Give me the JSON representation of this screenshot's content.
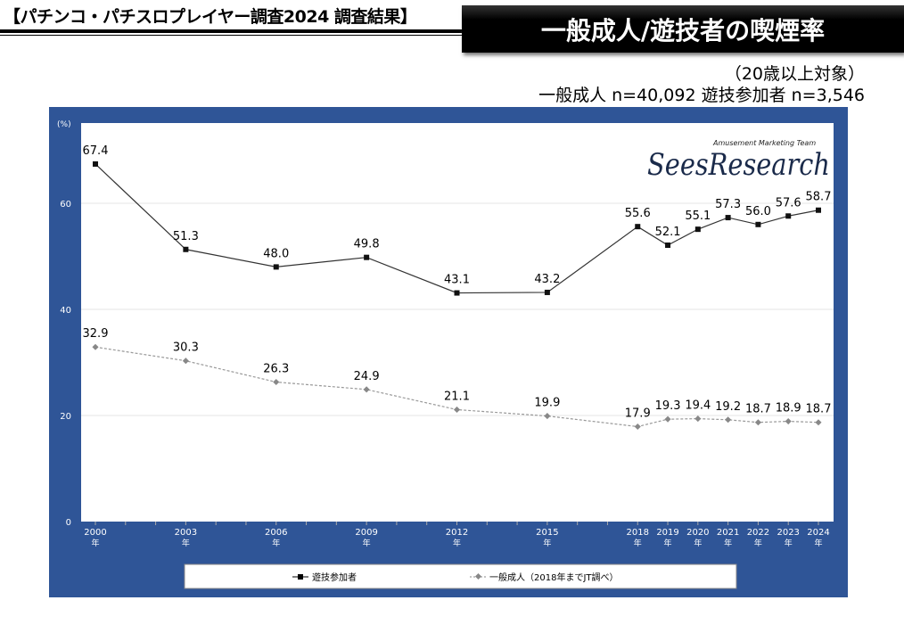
{
  "header": {
    "survey_title": "【パチンコ・パチスロプレイヤー調査2024 調査結果】",
    "chart_title": "一般成人/遊技者の喫煙率",
    "target_note": "（20歳以上対象）",
    "sample_sizes": "一般成人 n=40,092  遊技参加者 n=3,546"
  },
  "logo": {
    "tagline": "Amusement Marketing Team",
    "name": "SeesResearch"
  },
  "colors": {
    "panel": "#2f5597",
    "player_line": "#000000",
    "adult_line": "#808080"
  },
  "chart_data": {
    "type": "line",
    "title": "一般成人/遊技者の喫煙率",
    "ylabel": "(%)",
    "ylim": [
      0,
      70
    ],
    "yticks": [
      0,
      20,
      40,
      60
    ],
    "grid": true,
    "legend_position": "bottom",
    "x": [
      2000,
      2003,
      2006,
      2009,
      2012,
      2015,
      2018,
      2019,
      2020,
      2021,
      2022,
      2023,
      2024
    ],
    "x_tick_labels": [
      "2000",
      "2003",
      "2006",
      "2009",
      "2012",
      "2015",
      "2018",
      "2019",
      "2020",
      "2021",
      "2022",
      "2023",
      "2024"
    ],
    "x_tick_suffix": "年",
    "series": [
      {
        "name": "遊技参加者",
        "style": "solid-square",
        "values": [
          67.4,
          51.3,
          48.0,
          49.8,
          43.1,
          43.2,
          55.6,
          52.1,
          55.1,
          57.3,
          56.0,
          57.6,
          58.7
        ],
        "labels": [
          "67.4",
          "51.3",
          "48.0",
          "49.8",
          "43.1",
          "43.2",
          "55.6",
          "52.1",
          "55.1",
          "57.3",
          "56.0",
          "57.6",
          "58.7"
        ]
      },
      {
        "name": "一般成人（2018年までJT調べ）",
        "style": "dashed-diamond",
        "values": [
          32.9,
          30.3,
          26.3,
          24.9,
          21.1,
          19.9,
          17.9,
          19.3,
          19.4,
          19.2,
          18.7,
          18.9,
          18.7
        ],
        "labels": [
          "32.9",
          "30.3",
          "26.3",
          "24.9",
          "21.1",
          "19.9",
          "17.9",
          "19.3",
          "19.4",
          "19.2",
          "18.7",
          "18.9",
          "18.7"
        ]
      }
    ]
  }
}
